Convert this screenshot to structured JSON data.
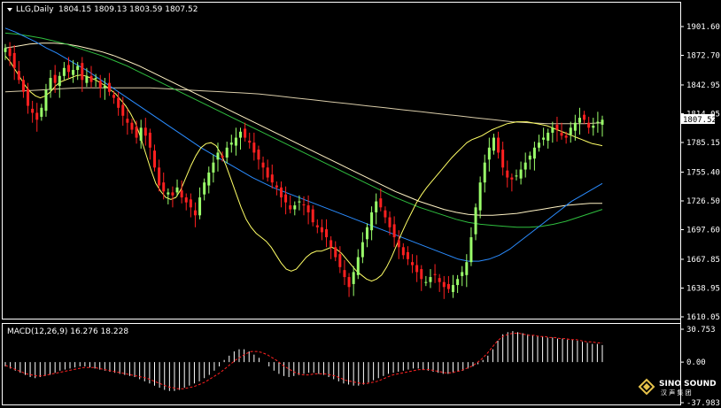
{
  "header": {
    "symbol_period": "LLG,Daily",
    "ohlc": "1804.15 1809.13 1803.59 1807.52"
  },
  "price_panel": {
    "ticks": [
      "1901.60",
      "1872.70",
      "1842.95",
      "1814.05",
      "1785.15",
      "1755.40",
      "1726.50",
      "1697.60",
      "1667.85",
      "1638.95",
      "1610.05"
    ],
    "current_price": "1807.52"
  },
  "macd_panel": {
    "title": "MACD(12,26,9) 16.276 18.228",
    "ticks": [
      "30.753",
      "0.00",
      "-37.983"
    ]
  },
  "watermark": {
    "brand": "SINO SOUND",
    "sub": "汉 声 集 团"
  },
  "colors": {
    "background": "#000000",
    "bull_candle": "#9aff6a",
    "bear_candle": "#ff2020",
    "ma_fast": "#ffff66",
    "ma_blue": "#2a8cff",
    "ma_green": "#2fbf3f",
    "ma_cream": "#fff3c4",
    "ma_tan": "#d8cba8",
    "macd_hist": "#ffffff",
    "macd_signal": "#ff2020"
  },
  "chart_data": {
    "type": "candlestick",
    "instrument": "LLG",
    "timeframe": "Daily",
    "last_bar": {
      "open": 1804.15,
      "high": 1809.13,
      "low": 1803.59,
      "close": 1807.52
    },
    "ylim": [
      1610.05,
      1901.6
    ],
    "closes": [
      1880,
      1872,
      1860,
      1848,
      1836,
      1822,
      1815,
      1808,
      1820,
      1838,
      1850,
      1845,
      1852,
      1860,
      1856,
      1858,
      1862,
      1848,
      1852,
      1846,
      1850,
      1840,
      1842,
      1836,
      1830,
      1820,
      1812,
      1805,
      1798,
      1790,
      1800,
      1792,
      1780,
      1760,
      1742,
      1736,
      1735,
      1732,
      1740,
      1730,
      1725,
      1720,
      1712,
      1730,
      1745,
      1755,
      1765,
      1775,
      1770,
      1780,
      1785,
      1790,
      1796,
      1790,
      1785,
      1775,
      1768,
      1760,
      1750,
      1745,
      1740,
      1730,
      1725,
      1718,
      1722,
      1726,
      1722,
      1715,
      1705,
      1700,
      1695,
      1690,
      1680,
      1670,
      1660,
      1650,
      1640,
      1655,
      1670,
      1685,
      1700,
      1715,
      1726,
      1720,
      1710,
      1700,
      1690,
      1680,
      1672,
      1668,
      1662,
      1655,
      1648,
      1645,
      1650,
      1652,
      1645,
      1640,
      1638,
      1642,
      1648,
      1655,
      1665,
      1690,
      1720,
      1745,
      1765,
      1780,
      1790,
      1775,
      1760,
      1750,
      1748,
      1752,
      1758,
      1765,
      1772,
      1780,
      1785,
      1790,
      1795,
      1800,
      1798,
      1792,
      1790,
      1800,
      1805,
      1810,
      1808,
      1800,
      1802,
      1806,
      1808
    ],
    "ma_fast": [
      1872,
      1866,
      1858,
      1850,
      1842,
      1836,
      1832,
      1830,
      1832,
      1836,
      1842,
      1846,
      1848,
      1850,
      1852,
      1853,
      1852,
      1850,
      1848,
      1845,
      1842,
      1838,
      1834,
      1828,
      1822,
      1814,
      1804,
      1790,
      1774,
      1758,
      1744,
      1736,
      1730,
      1728,
      1730,
      1738,
      1750,
      1762,
      1772,
      1780,
      1784,
      1785,
      1782,
      1774,
      1762,
      1748,
      1734,
      1720,
      1708,
      1700,
      1694,
      1690,
      1686,
      1680,
      1672,
      1664,
      1658,
      1656,
      1658,
      1664,
      1670,
      1674,
      1676,
      1676,
      1678,
      1680,
      1678,
      1674,
      1668,
      1662,
      1656,
      1652,
      1648,
      1646,
      1648,
      1652,
      1660,
      1670,
      1682,
      1694,
      1705,
      1715,
      1725,
      1733,
      1740,
      1746,
      1752,
      1758,
      1764,
      1770,
      1775,
      1780,
      1785,
      1788,
      1790,
      1792,
      1795,
      1798,
      1800,
      1802,
      1804,
      1805,
      1806,
      1806,
      1806,
      1805,
      1804,
      1803,
      1802,
      1800,
      1798,
      1796,
      1794,
      1792,
      1790,
      1788,
      1786,
      1784,
      1783,
      1782
    ],
    "ma_blue": [
      1900,
      1896,
      1891,
      1886,
      1880,
      1875,
      1869,
      1863,
      1857,
      1850,
      1843,
      1836,
      1829,
      1822,
      1815,
      1808,
      1801,
      1794,
      1787,
      1780,
      1774,
      1768,
      1762,
      1756,
      1750,
      1745,
      1740,
      1736,
      1732,
      1728,
      1724,
      1720,
      1716,
      1712,
      1708,
      1704,
      1700,
      1696,
      1692,
      1688,
      1684,
      1680,
      1676,
      1672,
      1668,
      1666,
      1666,
      1668,
      1672,
      1678,
      1686,
      1694,
      1702,
      1710,
      1718,
      1726,
      1732,
      1738,
      1744
    ],
    "ma_green": [
      1895,
      1894,
      1892,
      1890,
      1887,
      1884,
      1880,
      1876,
      1872,
      1867,
      1862,
      1856,
      1850,
      1844,
      1838,
      1832,
      1826,
      1820,
      1814,
      1808,
      1802,
      1796,
      1790,
      1784,
      1778,
      1772,
      1766,
      1760,
      1754,
      1748,
      1742,
      1736,
      1730,
      1725,
      1720,
      1716,
      1712,
      1708,
      1705,
      1703,
      1702,
      1701,
      1700,
      1700,
      1701,
      1703,
      1706,
      1710,
      1714,
      1718
    ],
    "ma_cream": [
      1880,
      1882,
      1884,
      1885,
      1885,
      1884,
      1882,
      1879,
      1876,
      1872,
      1867,
      1862,
      1856,
      1850,
      1844,
      1838,
      1832,
      1826,
      1820,
      1814,
      1808,
      1802,
      1796,
      1790,
      1784,
      1778,
      1772,
      1766,
      1760,
      1754,
      1748,
      1742,
      1736,
      1731,
      1726,
      1722,
      1718,
      1715,
      1713,
      1712,
      1712,
      1713,
      1714,
      1716,
      1718,
      1720,
      1722,
      1723,
      1724,
      1724
    ],
    "ma_tan": [
      1836,
      1837,
      1838,
      1839,
      1840,
      1840,
      1840,
      1840,
      1840,
      1839,
      1838,
      1837,
      1836,
      1835,
      1834,
      1832,
      1830,
      1828,
      1826,
      1824,
      1822,
      1820,
      1818,
      1816,
      1814,
      1812,
      1810,
      1808,
      1806,
      1805,
      1804,
      1804,
      1804,
      1805
    ],
    "macd": {
      "ylim": [
        -37.983,
        30.753
      ],
      "title": "MACD(12,26,9)",
      "macd_value": 16.276,
      "signal_value": 18.228,
      "histogram": [
        -4,
        -6,
        -8,
        -10,
        -12,
        -14,
        -15,
        -14,
        -13,
        -12,
        -10,
        -8,
        -7,
        -6,
        -5,
        -4,
        -4,
        -5,
        -6,
        -7,
        -8,
        -9,
        -10,
        -11,
        -12,
        -13,
        -14,
        -16,
        -18,
        -20,
        -22,
        -24,
        -26,
        -27,
        -27,
        -26,
        -24,
        -22,
        -20,
        -18,
        -15,
        -12,
        -8,
        -4,
        2,
        6,
        10,
        12,
        12,
        10,
        7,
        4,
        0,
        -4,
        -8,
        -11,
        -13,
        -14,
        -13,
        -12,
        -11,
        -10,
        -10,
        -11,
        -12,
        -14,
        -16,
        -18,
        -20,
        -21,
        -22,
        -22,
        -21,
        -19,
        -17,
        -15,
        -13,
        -11,
        -10,
        -9,
        -8,
        -7,
        -6,
        -6,
        -7,
        -8,
        -9,
        -10,
        -11,
        -11,
        -10,
        -9,
        -8,
        -6,
        -4,
        -2,
        2,
        6,
        12,
        20,
        26,
        28,
        29,
        28,
        27,
        26,
        25,
        24,
        24,
        23,
        23,
        22,
        22,
        21,
        21,
        20,
        19,
        18,
        17,
        17,
        16
      ],
      "signal": [
        -3,
        -5,
        -7,
        -9,
        -11,
        -12,
        -13,
        -13,
        -12,
        -11,
        -10,
        -9,
        -8,
        -7,
        -6,
        -5,
        -5,
        -5,
        -6,
        -7,
        -8,
        -9,
        -10,
        -11,
        -12,
        -13,
        -14,
        -15,
        -17,
        -19,
        -21,
        -23,
        -24,
        -25,
        -25,
        -24,
        -23,
        -21,
        -19,
        -16,
        -13,
        -10,
        -6,
        -2,
        2,
        5,
        8,
        10,
        10,
        9,
        7,
        4,
        1,
        -3,
        -6,
        -9,
        -11,
        -12,
        -12,
        -11,
        -11,
        -11,
        -12,
        -13,
        -15,
        -17,
        -18,
        -19,
        -20,
        -20,
        -19,
        -18,
        -16,
        -14,
        -12,
        -11,
        -10,
        -9,
        -8,
        -7,
        -7,
        -7,
        -8,
        -9,
        -10,
        -10,
        -9,
        -8,
        -6,
        -4,
        -1,
        3,
        8,
        14,
        20,
        24,
        26,
        27,
        27,
        26,
        25,
        25,
        24,
        24,
        23,
        23,
        22,
        22,
        21,
        21,
        20,
        19,
        19,
        18,
        18
      ]
    }
  }
}
